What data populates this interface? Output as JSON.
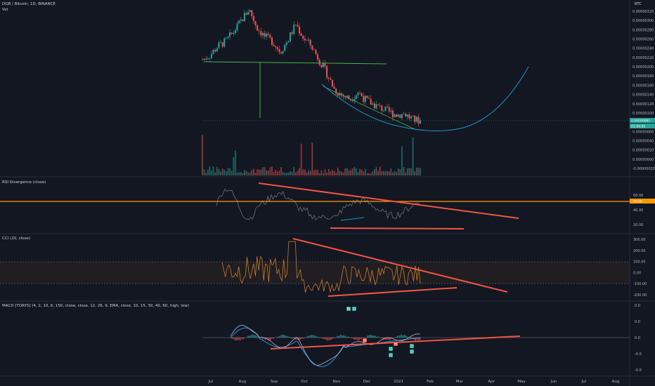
{
  "header": {
    "symbol": "DGB / Bitcoin, 1D, BINANCE",
    "volume_label": "Vol",
    "currency": "BTC"
  },
  "panes": {
    "rsi": {
      "label": "RSI Divergence (close)"
    },
    "cci": {
      "label": "CCI (20, close)"
    },
    "macd": {
      "label": "MACD [TORYS] (4, 2, 10, 6, 150, close, close, 12, 26, 9, EMA, close, 10, 15, 30, 40, 60, high, low)"
    }
  },
  "colors": {
    "background": "#131722",
    "up": "#26a69a",
    "down": "#ef5350",
    "trendline": "#f05545",
    "orange_line": "#ff9800",
    "cci_line": "#c97a32",
    "teal_curve": "#2196c4",
    "green_line": "#4caf50",
    "grid_text": "#b2b5be"
  },
  "chart_data": [
    {
      "type": "candlestick",
      "title": "DGB / Bitcoin, 1D, BINANCE",
      "y_ticks": [
        "0.00000320",
        "0.00000300",
        "0.00000280",
        "0.00000260",
        "0.00000240",
        "0.00000220",
        "0.00000200",
        "0.00000180",
        "0.00000160",
        "0.00000140",
        "0.00000120",
        "0.00000100",
        "0.00000060",
        "0.00000040",
        "0.00000020",
        "0.00000000",
        "-0.00000020"
      ],
      "y_ticks_pos_values": [
        320,
        300,
        280,
        260,
        240,
        220,
        200,
        180,
        160,
        140,
        120,
        100,
        60,
        40,
        20,
        0,
        -20
      ],
      "current_price_label": "0.00000081",
      "current_price_value": 81,
      "countdown_label": "01:09:05",
      "x_ticks": [
        "Jul",
        "Aug",
        "Sep",
        "Oct",
        "Nov",
        "Dec",
        "2021",
        "Feb",
        "Mar",
        "Apr",
        "May",
        "Jun",
        "Jul",
        "Aug"
      ],
      "price_series": [
        [
          "Jul",
          215
        ],
        [
          "Jul",
          225
        ],
        [
          "Jul",
          245
        ],
        [
          "Aug",
          255
        ],
        [
          "Aug",
          275
        ],
        [
          "Aug",
          300
        ],
        [
          "Aug",
          325
        ],
        [
          "Sep",
          285
        ],
        [
          "Sep",
          265
        ],
        [
          "Sep",
          255
        ],
        [
          "Sep",
          232
        ],
        [
          "Sep",
          258
        ],
        [
          "Oct",
          292
        ],
        [
          "Oct",
          262
        ],
        [
          "Oct",
          245
        ],
        [
          "Oct",
          215
        ],
        [
          "Oct",
          185
        ],
        [
          "Nov",
          150
        ],
        [
          "Nov",
          138
        ],
        [
          "Nov",
          130
        ],
        [
          "Nov",
          145
        ],
        [
          "Nov",
          128
        ],
        [
          "Dec",
          118
        ],
        [
          "Dec",
          110
        ],
        [
          "Dec",
          102
        ],
        [
          "Dec",
          96
        ],
        [
          "2021",
          98
        ],
        [
          "2021",
          86
        ],
        [
          "2021",
          83
        ]
      ],
      "annotations": {
        "horizontal_support": 207,
        "projected_curve": "rounded-bottom arc from Nov to May"
      }
    },
    {
      "type": "line",
      "title": "RSI Divergence (close)",
      "y_ticks": [
        "60.00",
        "50.00",
        "40.00",
        "20.00"
      ],
      "y_ticks_pos_values": [
        60,
        50,
        40,
        20
      ],
      "level_label": "50.00",
      "level_value": 50,
      "trendlines": [
        {
          "from": [
            "Sep",
            73
          ],
          "to": [
            "Apr",
            30
          ]
        },
        {
          "from": [
            "Nov",
            21
          ],
          "to": [
            "Feb",
            21
          ]
        }
      ]
    },
    {
      "type": "line",
      "title": "CCI (20, close)",
      "y_ticks": [
        "300.00",
        "200.00",
        "100.00",
        "0.00",
        "-100.00",
        "-200.00"
      ],
      "y_ticks_pos_values": [
        300,
        200,
        100,
        0,
        -100,
        -200
      ],
      "band": [
        -100,
        100
      ],
      "trendlines": [
        {
          "from": [
            "Sep",
            305
          ],
          "to": [
            "Apr",
            -165
          ]
        },
        {
          "from": [
            "Nov",
            -220
          ],
          "to": [
            "Mar",
            -140
          ]
        }
      ]
    },
    {
      "type": "line",
      "title": "MACD [TORYS] (4, 2, 10, 6, 150, close, close, 12, 26, 9, EMA, close, 10, 15, 30, 40, 60, high, low)",
      "y_ticks": [
        "0.0",
        "0.0",
        "0.0",
        "-0.0",
        "-0.0"
      ],
      "y_ticks_pos_values": [
        0.2,
        0.1,
        0,
        -0.1,
        -0.2
      ],
      "badges": [
        "Bl",
        "D",
        "H",
        "H",
        "D",
        "D",
        "D",
        "D"
      ],
      "trendlines": [
        {
          "from": [
            "Sep",
            -0.1
          ],
          "to": [
            "Apr",
            0
          ]
        }
      ]
    }
  ]
}
